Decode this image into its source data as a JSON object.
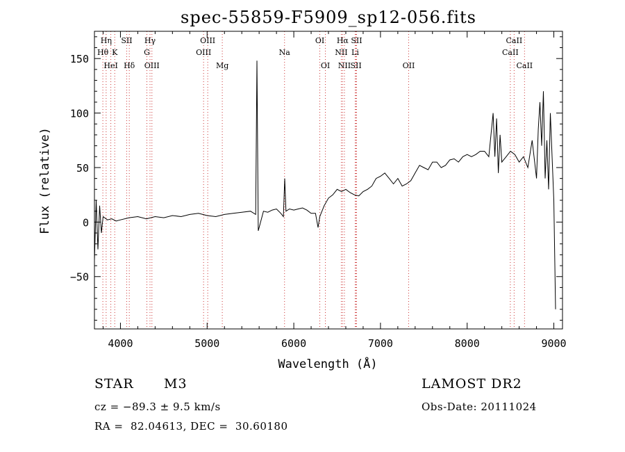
{
  "title": "spec-55859-F5909_sp12-056.fits",
  "info": {
    "class": "STAR",
    "subclass": "M3",
    "survey": "LAMOST DR2",
    "cz": "cz = −89.3 ± 9.5 km/s",
    "obs_date": "Obs-Date: 20111024",
    "coords": "RA =  82.04613, DEC =  30.60180"
  },
  "colors": {
    "line_markers": "#cc3333",
    "spectrum": "#000000",
    "axes": "#000000"
  },
  "chart_data": {
    "type": "line",
    "title": "spec-55859-F5909_sp12-056.fits",
    "xlabel": "Wavelength (Å)",
    "ylabel": "Flux (relative)",
    "xlim": [
      3700,
      9100
    ],
    "ylim": [
      -98,
      175
    ],
    "xticks": [
      4000,
      5000,
      6000,
      7000,
      8000,
      9000
    ],
    "yticks": [
      -50,
      0,
      50,
      100,
      150
    ],
    "xtick_labels": [
      "4000",
      "5000",
      "6000",
      "7000",
      "8000",
      "9000"
    ],
    "ytick_labels": [
      "−50",
      "0",
      "50",
      "100",
      "150"
    ],
    "series": [
      {
        "x": [
          3700,
          3720,
          3740,
          3760,
          3780,
          3800,
          3850,
          3900,
          3950,
          4000,
          4100,
          4200,
          4300,
          4400,
          4500,
          4600,
          4700,
          4800,
          4900,
          5000,
          5100,
          5200,
          5300,
          5400,
          5500,
          5560,
          5575,
          5590,
          5650,
          5700,
          5750,
          5800,
          5850,
          5880,
          5895,
          5910,
          5950,
          6000,
          6050,
          6100,
          6150,
          6200,
          6250,
          6280,
          6300,
          6350,
          6400,
          6450,
          6500,
          6550,
          6600,
          6650,
          6700,
          6750,
          6800,
          6850,
          6900,
          6950,
          7000,
          7050,
          7100,
          7150,
          7200,
          7250,
          7300,
          7350,
          7400,
          7450,
          7500,
          7550,
          7600,
          7650,
          7700,
          7750,
          7800,
          7850,
          7900,
          7950,
          8000,
          8050,
          8100,
          8150,
          8200,
          8250,
          8300,
          8320,
          8340,
          8360,
          8380,
          8400,
          8450,
          8500,
          8550,
          8600,
          8650,
          8700,
          8750,
          8800,
          8820,
          8840,
          8860,
          8880,
          8900,
          8920,
          8940,
          8960,
          8980,
          9000,
          9020
        ],
        "y": [
          -35,
          20,
          -25,
          15,
          -10,
          5,
          2,
          3,
          1,
          2,
          4,
          5,
          3,
          5,
          4,
          6,
          5,
          7,
          8,
          6,
          5,
          7,
          8,
          9,
          10,
          7,
          148,
          -8,
          10,
          9,
          11,
          12,
          8,
          5,
          40,
          10,
          12,
          11,
          12,
          13,
          11,
          8,
          8,
          -5,
          5,
          15,
          22,
          25,
          30,
          28,
          30,
          27,
          25,
          24,
          28,
          30,
          33,
          40,
          42,
          45,
          40,
          35,
          40,
          33,
          35,
          38,
          45,
          52,
          50,
          48,
          55,
          55,
          50,
          52,
          57,
          58,
          55,
          60,
          62,
          60,
          62,
          65,
          65,
          60,
          100,
          60,
          95,
          45,
          80,
          55,
          60,
          65,
          62,
          55,
          60,
          50,
          75,
          40,
          85,
          110,
          70,
          120,
          40,
          75,
          30,
          100,
          60,
          20,
          -80
        ]
      }
    ],
    "line_labels": [
      {
        "label": "Hη",
        "x": 3835,
        "row": 0
      },
      {
        "label": "Hθ",
        "x": 3797,
        "row": 1
      },
      {
        "label": "HeI",
        "x": 3889,
        "row": 2
      },
      {
        "label": "SII",
        "x": 4072,
        "row": 0
      },
      {
        "label": "K",
        "x": 3934,
        "row": 1
      },
      {
        "label": "Hδ",
        "x": 4102,
        "row": 2
      },
      {
        "label": "Hγ",
        "x": 4341,
        "row": 0
      },
      {
        "label": "G",
        "x": 4305,
        "row": 1
      },
      {
        "label": "OIII",
        "x": 4363,
        "row": 2
      },
      {
        "label": "OIII",
        "x": 5007,
        "row": 0
      },
      {
        "label": "OIII",
        "x": 4959,
        "row": 1
      },
      {
        "label": "Mg",
        "x": 5175,
        "row": 2
      },
      {
        "label": "Na",
        "x": 5893,
        "row": 1
      },
      {
        "label": "OI",
        "x": 6300,
        "row": 0
      },
      {
        "label": "OI",
        "x": 6364,
        "row": 2
      },
      {
        "label": "Hα",
        "x": 6563,
        "row": 0
      },
      {
        "label": "SII",
        "x": 6724,
        "row": 0
      },
      {
        "label": "NII",
        "x": 6548,
        "row": 1
      },
      {
        "label": "Li",
        "x": 6708,
        "row": 1
      },
      {
        "label": "NII",
        "x": 6584,
        "row": 2
      },
      {
        "label": "SII",
        "x": 6717,
        "row": 2
      },
      {
        "label": "OII",
        "x": 7325,
        "row": 2
      },
      {
        "label": "CaII",
        "x": 8542,
        "row": 0
      },
      {
        "label": "CaII",
        "x": 8498,
        "row": 1
      },
      {
        "label": "CaII",
        "x": 8662,
        "row": 2
      }
    ]
  }
}
